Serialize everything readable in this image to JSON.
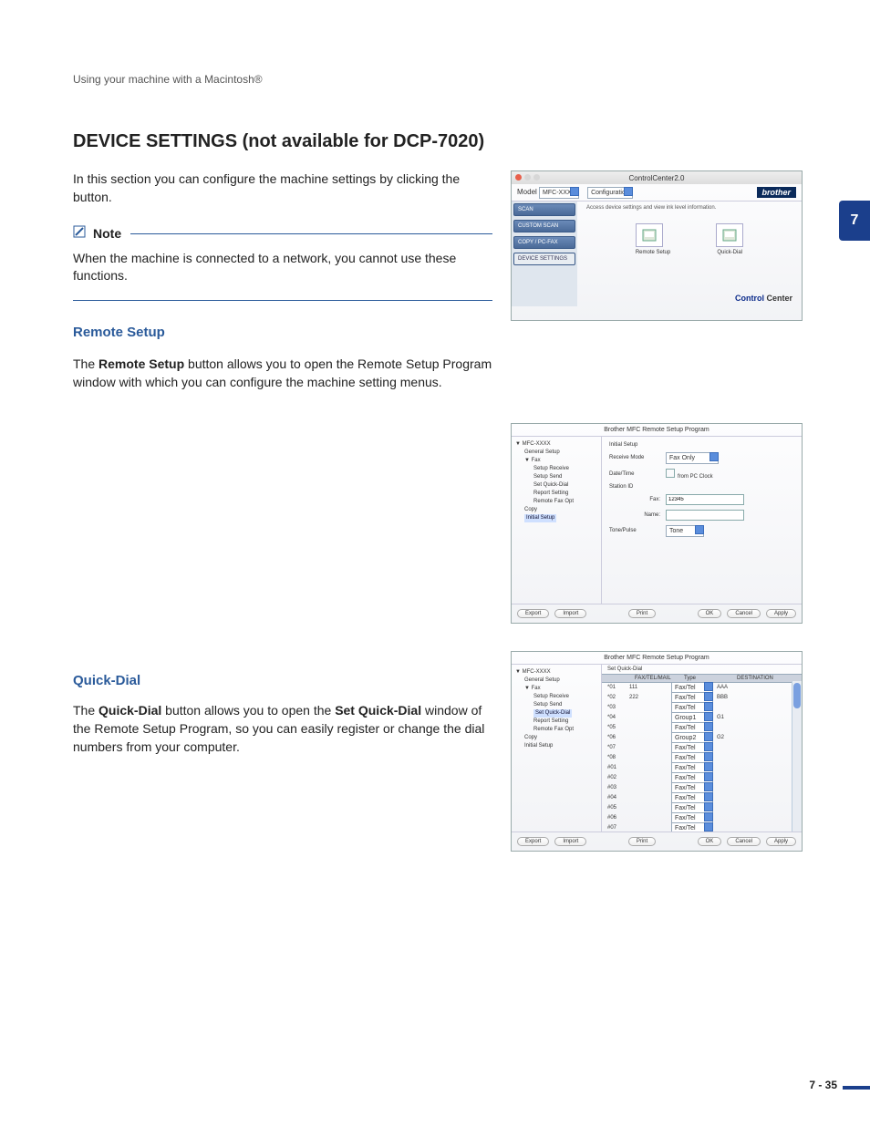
{
  "running_header": "Using your machine with a Macintosh®",
  "chapter_tab": "7",
  "page_number": "7 - 35",
  "h1": "DEVICE SETTINGS (not available for DCP-7020)",
  "intro": "In this section you can configure the machine settings by clicking the button.",
  "note_label": "Note",
  "note_body": "When the machine is connected to a network, you cannot use these functions.",
  "remote_setup": {
    "heading": "Remote Setup",
    "body_pre": "The ",
    "body_bold": "Remote Setup",
    "body_post": " button allows you to open the Remote Setup Program window with which you can configure the machine setting menus."
  },
  "quick_dial": {
    "heading": "Quick-Dial",
    "body_pre": "The ",
    "body_bold1": "Quick-Dial",
    "body_mid": " button allows you to open the ",
    "body_bold2": "Set Quick-Dial",
    "body_post": " window of the Remote Setup Program, so you can easily register or change the dial numbers from your computer."
  },
  "control_center": {
    "titlebar": "ControlCenter2.0",
    "model_label": "Model",
    "model_value": "MFC-XXXX",
    "config_label": "Configuration",
    "brand": "brother",
    "desc": "Access device settings and view ink level information.",
    "sidebar": [
      "SCAN",
      "CUSTOM SCAN",
      "COPY / PC-FAX",
      "DEVICE SETTINGS"
    ],
    "selected_sidebar_index": 3,
    "icons": [
      {
        "label": "Remote Setup"
      },
      {
        "label": "Quick-Dial"
      }
    ],
    "footer_brand_bold": "Control",
    "footer_brand_rest": " Center"
  },
  "rs_window": {
    "title": "Brother MFC Remote Setup Program",
    "tree": [
      {
        "t": "▼ MFC-XXXX",
        "i": 0
      },
      {
        "t": "General Setup",
        "i": 1
      },
      {
        "t": "▼ Fax",
        "i": 1
      },
      {
        "t": "Setup Receive",
        "i": 2
      },
      {
        "t": "Setup Send",
        "i": 2
      },
      {
        "t": "Set Quick-Dial",
        "i": 2
      },
      {
        "t": "Report Setting",
        "i": 2
      },
      {
        "t": "Remote Fax Opt",
        "i": 2
      },
      {
        "t": "Copy",
        "i": 1
      },
      {
        "t": "Initial Setup",
        "i": 1,
        "hl": true
      }
    ],
    "form": {
      "caption": "Initial Setup",
      "receive_mode_label": "Receive Mode",
      "receive_mode_value": "Fax Only",
      "datetime_label": "Date/Time",
      "datetime_chk": "from PC Clock",
      "stationid_label": "Station ID",
      "fax_label": "Fax:",
      "fax_value": "12345",
      "name_label": "Name:",
      "name_value": "",
      "tonepulse_label": "Tone/Pulse",
      "tonepulse_value": "Tone"
    },
    "buttons": {
      "export": "Export",
      "import": "Import",
      "print": "Print",
      "ok": "OK",
      "cancel": "Cancel",
      "apply": "Apply"
    }
  },
  "qd_window": {
    "title": "Brother MFC Remote Setup Program",
    "tree": [
      {
        "t": "▼ MFC-XXXX",
        "i": 0
      },
      {
        "t": "General Setup",
        "i": 1
      },
      {
        "t": "▼ Fax",
        "i": 1
      },
      {
        "t": "Setup Receive",
        "i": 2
      },
      {
        "t": "Setup Send",
        "i": 2
      },
      {
        "t": "Set Quick-Dial",
        "i": 2,
        "hl": true
      },
      {
        "t": "Report Setting",
        "i": 2
      },
      {
        "t": "Remote Fax Opt",
        "i": 2
      },
      {
        "t": "Copy",
        "i": 1
      },
      {
        "t": "Initial Setup",
        "i": 1
      }
    ],
    "caption": "Set Quick-Dial",
    "cols": [
      "",
      "FAX/TEL/MAIL",
      "Type",
      "DESTINATION"
    ],
    "rows": [
      {
        "id": "*01",
        "num": "111",
        "type": "Fax/Tel",
        "dest": "AAA"
      },
      {
        "id": "*02",
        "num": "222",
        "type": "Fax/Tel",
        "dest": "BBB"
      },
      {
        "id": "*03",
        "num": "",
        "type": "Fax/Tel",
        "dest": ""
      },
      {
        "id": "*04",
        "num": "",
        "type": "Group1",
        "dest": "G1"
      },
      {
        "id": "*05",
        "num": "",
        "type": "Fax/Tel",
        "dest": ""
      },
      {
        "id": "*06",
        "num": "",
        "type": "Group2",
        "dest": "G2"
      },
      {
        "id": "*07",
        "num": "",
        "type": "Fax/Tel",
        "dest": ""
      },
      {
        "id": "*08",
        "num": "",
        "type": "Fax/Tel",
        "dest": ""
      },
      {
        "id": "#01",
        "num": "",
        "type": "Fax/Tel",
        "dest": ""
      },
      {
        "id": "#02",
        "num": "",
        "type": "Fax/Tel",
        "dest": ""
      },
      {
        "id": "#03",
        "num": "",
        "type": "Fax/Tel",
        "dest": ""
      },
      {
        "id": "#04",
        "num": "",
        "type": "Fax/Tel",
        "dest": ""
      },
      {
        "id": "#05",
        "num": "",
        "type": "Fax/Tel",
        "dest": ""
      },
      {
        "id": "#06",
        "num": "",
        "type": "Fax/Tel",
        "dest": ""
      },
      {
        "id": "#07",
        "num": "",
        "type": "Fax/Tel",
        "dest": ""
      }
    ],
    "buttons": {
      "export": "Export",
      "import": "Import",
      "print": "Print",
      "ok": "OK",
      "cancel": "Cancel",
      "apply": "Apply"
    }
  }
}
